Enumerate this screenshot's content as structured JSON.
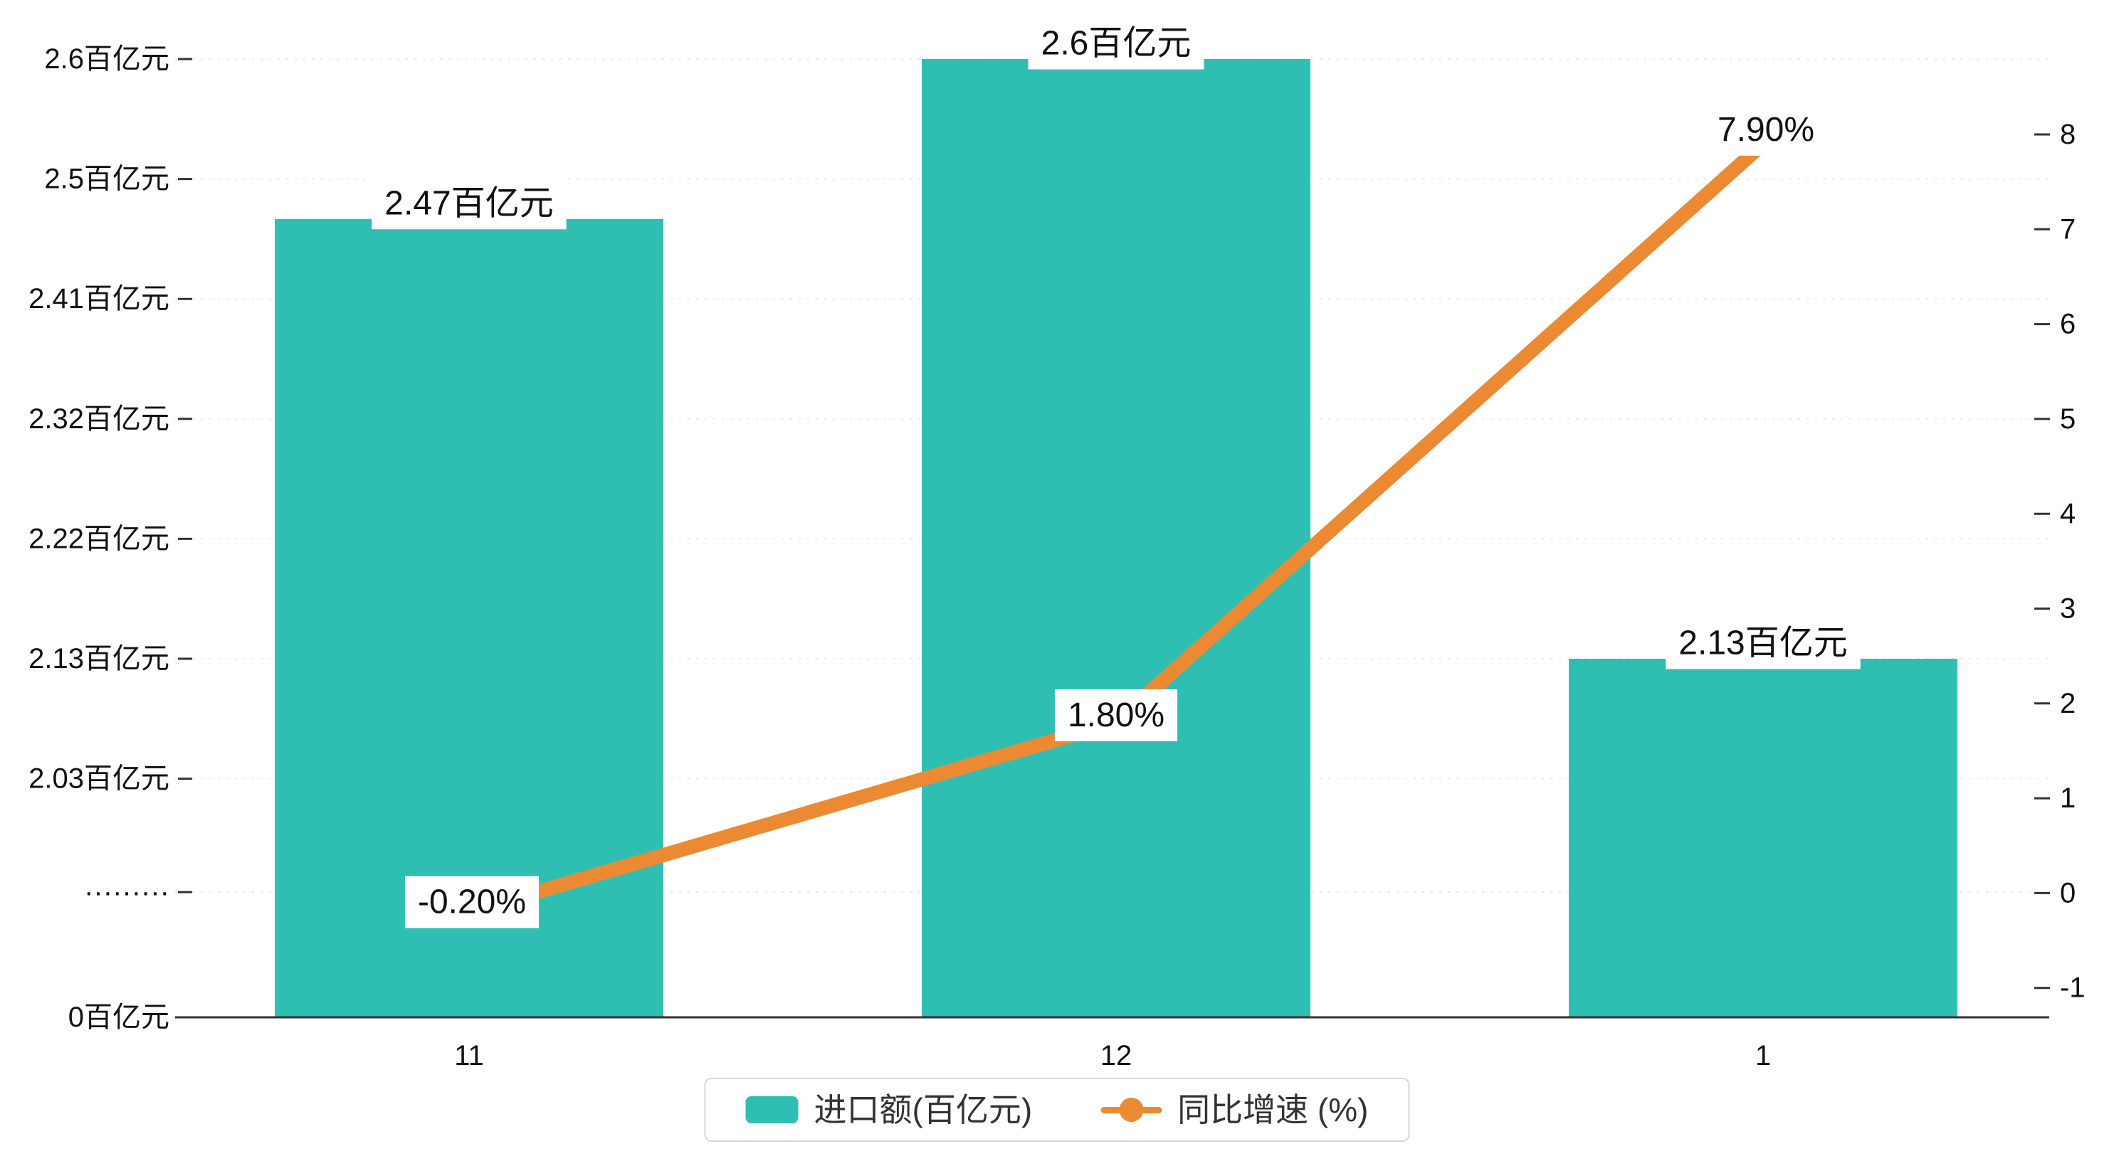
{
  "background": "#ffffff",
  "chart_data": {
    "type": "bar+line",
    "categories": [
      "11",
      "12",
      "1"
    ],
    "series": [
      {
        "name": "进口额(百亿元)",
        "type": "bar",
        "values": [
          2.47,
          2.6,
          2.13
        ],
        "labels": [
          "2.47百亿元",
          "2.6百亿元",
          "2.13百亿元"
        ],
        "color": "#2fbfb2"
      },
      {
        "name": "同比增速 (%)",
        "type": "line",
        "values": [
          -0.2,
          1.8,
          7.9
        ],
        "labels": [
          "-0.20%",
          "1.80%",
          "7.90%"
        ],
        "color": "#ec8a33"
      }
    ],
    "left_axis": {
      "ticks": [
        "2.6百亿元",
        "2.5百亿元",
        "2.41百亿元",
        "2.32百亿元",
        "2.22百亿元",
        "2.13百亿元",
        "2.03百亿元",
        "·········",
        "0百亿元"
      ],
      "break_label": "·········"
    },
    "right_axis": {
      "ticks": [
        "8",
        "7",
        "6",
        "5",
        "4",
        "3",
        "2",
        "1",
        "0",
        "-1"
      ],
      "min": -1,
      "max": 8
    },
    "legend": [
      {
        "label": "进口额(百亿元)",
        "marker": "bar-swatch",
        "color": "#2fbfb2"
      },
      {
        "label": "同比增速 (%)",
        "marker": "line-dot",
        "color": "#ec8a33"
      }
    ],
    "grid": "horizontal-dotted",
    "legend_position": "bottom-center"
  }
}
